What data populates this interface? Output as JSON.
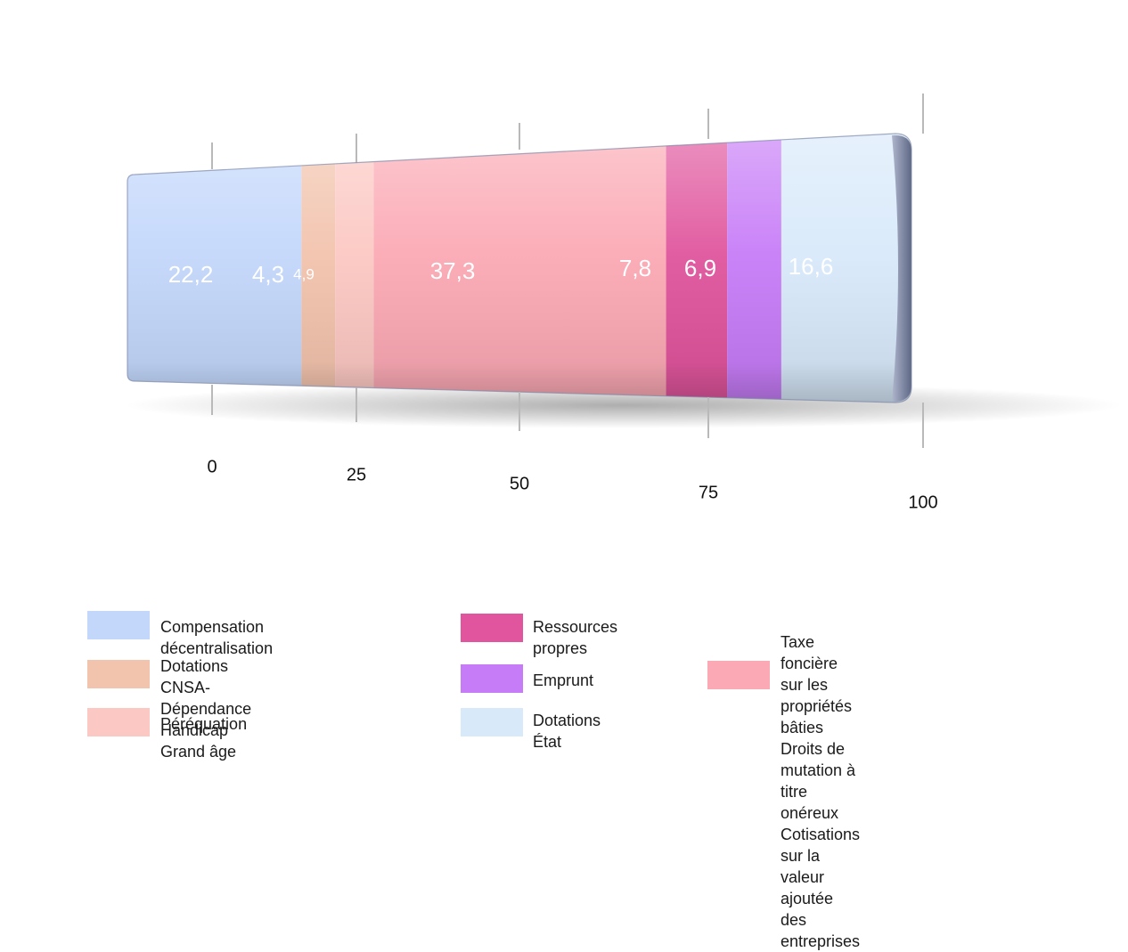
{
  "chart_data": {
    "type": "bar",
    "orientation": "horizontal-stacked",
    "categories": [
      ""
    ],
    "series": [
      {
        "name": "Compensation décentralisation",
        "values": [
          22.2
        ],
        "label": "22,2",
        "color": "#c3d7fb"
      },
      {
        "name": "Dotations CNSA-Dépendance Handicap Grand âge",
        "values": [
          4.3
        ],
        "label": "4,3",
        "color": "#f2c3ad"
      },
      {
        "name": "Péréquation",
        "values": [
          4.9
        ],
        "label": "4,9",
        "color": "#fcc8c3"
      },
      {
        "name": "Taxe foncière sur les propriétés bâties Droits de mutation à titre onéreux Cotisations sur la valeur ajoutée des entreprises",
        "values": [
          37.3
        ],
        "label": "37,3",
        "color": "#fba9b4"
      },
      {
        "name": "Ressources propres",
        "values": [
          7.8
        ],
        "label": "7,8",
        "color": "#e0559d"
      },
      {
        "name": "Emprunt",
        "values": [
          6.9
        ],
        "label": "6,9",
        "color": "#c77cf7"
      },
      {
        "name": "Dotations État",
        "values": [
          16.6
        ],
        "label": "16,6",
        "color": "#d8e9fa"
      }
    ],
    "xlim": [
      0,
      100
    ],
    "ticks": [
      {
        "value": 0,
        "label": "0"
      },
      {
        "value": 25,
        "label": "25"
      },
      {
        "value": 50,
        "label": "50"
      },
      {
        "value": 75,
        "label": "75"
      },
      {
        "value": 100,
        "label": "100"
      }
    ],
    "grid": true,
    "legend_position": "bottom",
    "title": "",
    "xlabel": "",
    "ylabel": ""
  },
  "legend": [
    {
      "label": "Compensation décentralisation",
      "color": "#c3d7fb"
    },
    {
      "label": "Dotations CNSA-Dépendance\nHandicap Grand âge",
      "color": "#f2c3ad"
    },
    {
      "label": "Péréquation",
      "color": "#fcc8c3"
    },
    {
      "label": "Ressources propres",
      "color": "#e0559d"
    },
    {
      "label": "Emprunt",
      "color": "#c77cf7"
    },
    {
      "label": "Dotations État",
      "color": "#d8e9fa"
    },
    {
      "label": "Taxe foncière sur les propriétés bâties\nDroits de mutation à titre onéreux\nCotisations sur la valeur ajoutée des\nentreprises",
      "color": "#fba9b4"
    }
  ]
}
